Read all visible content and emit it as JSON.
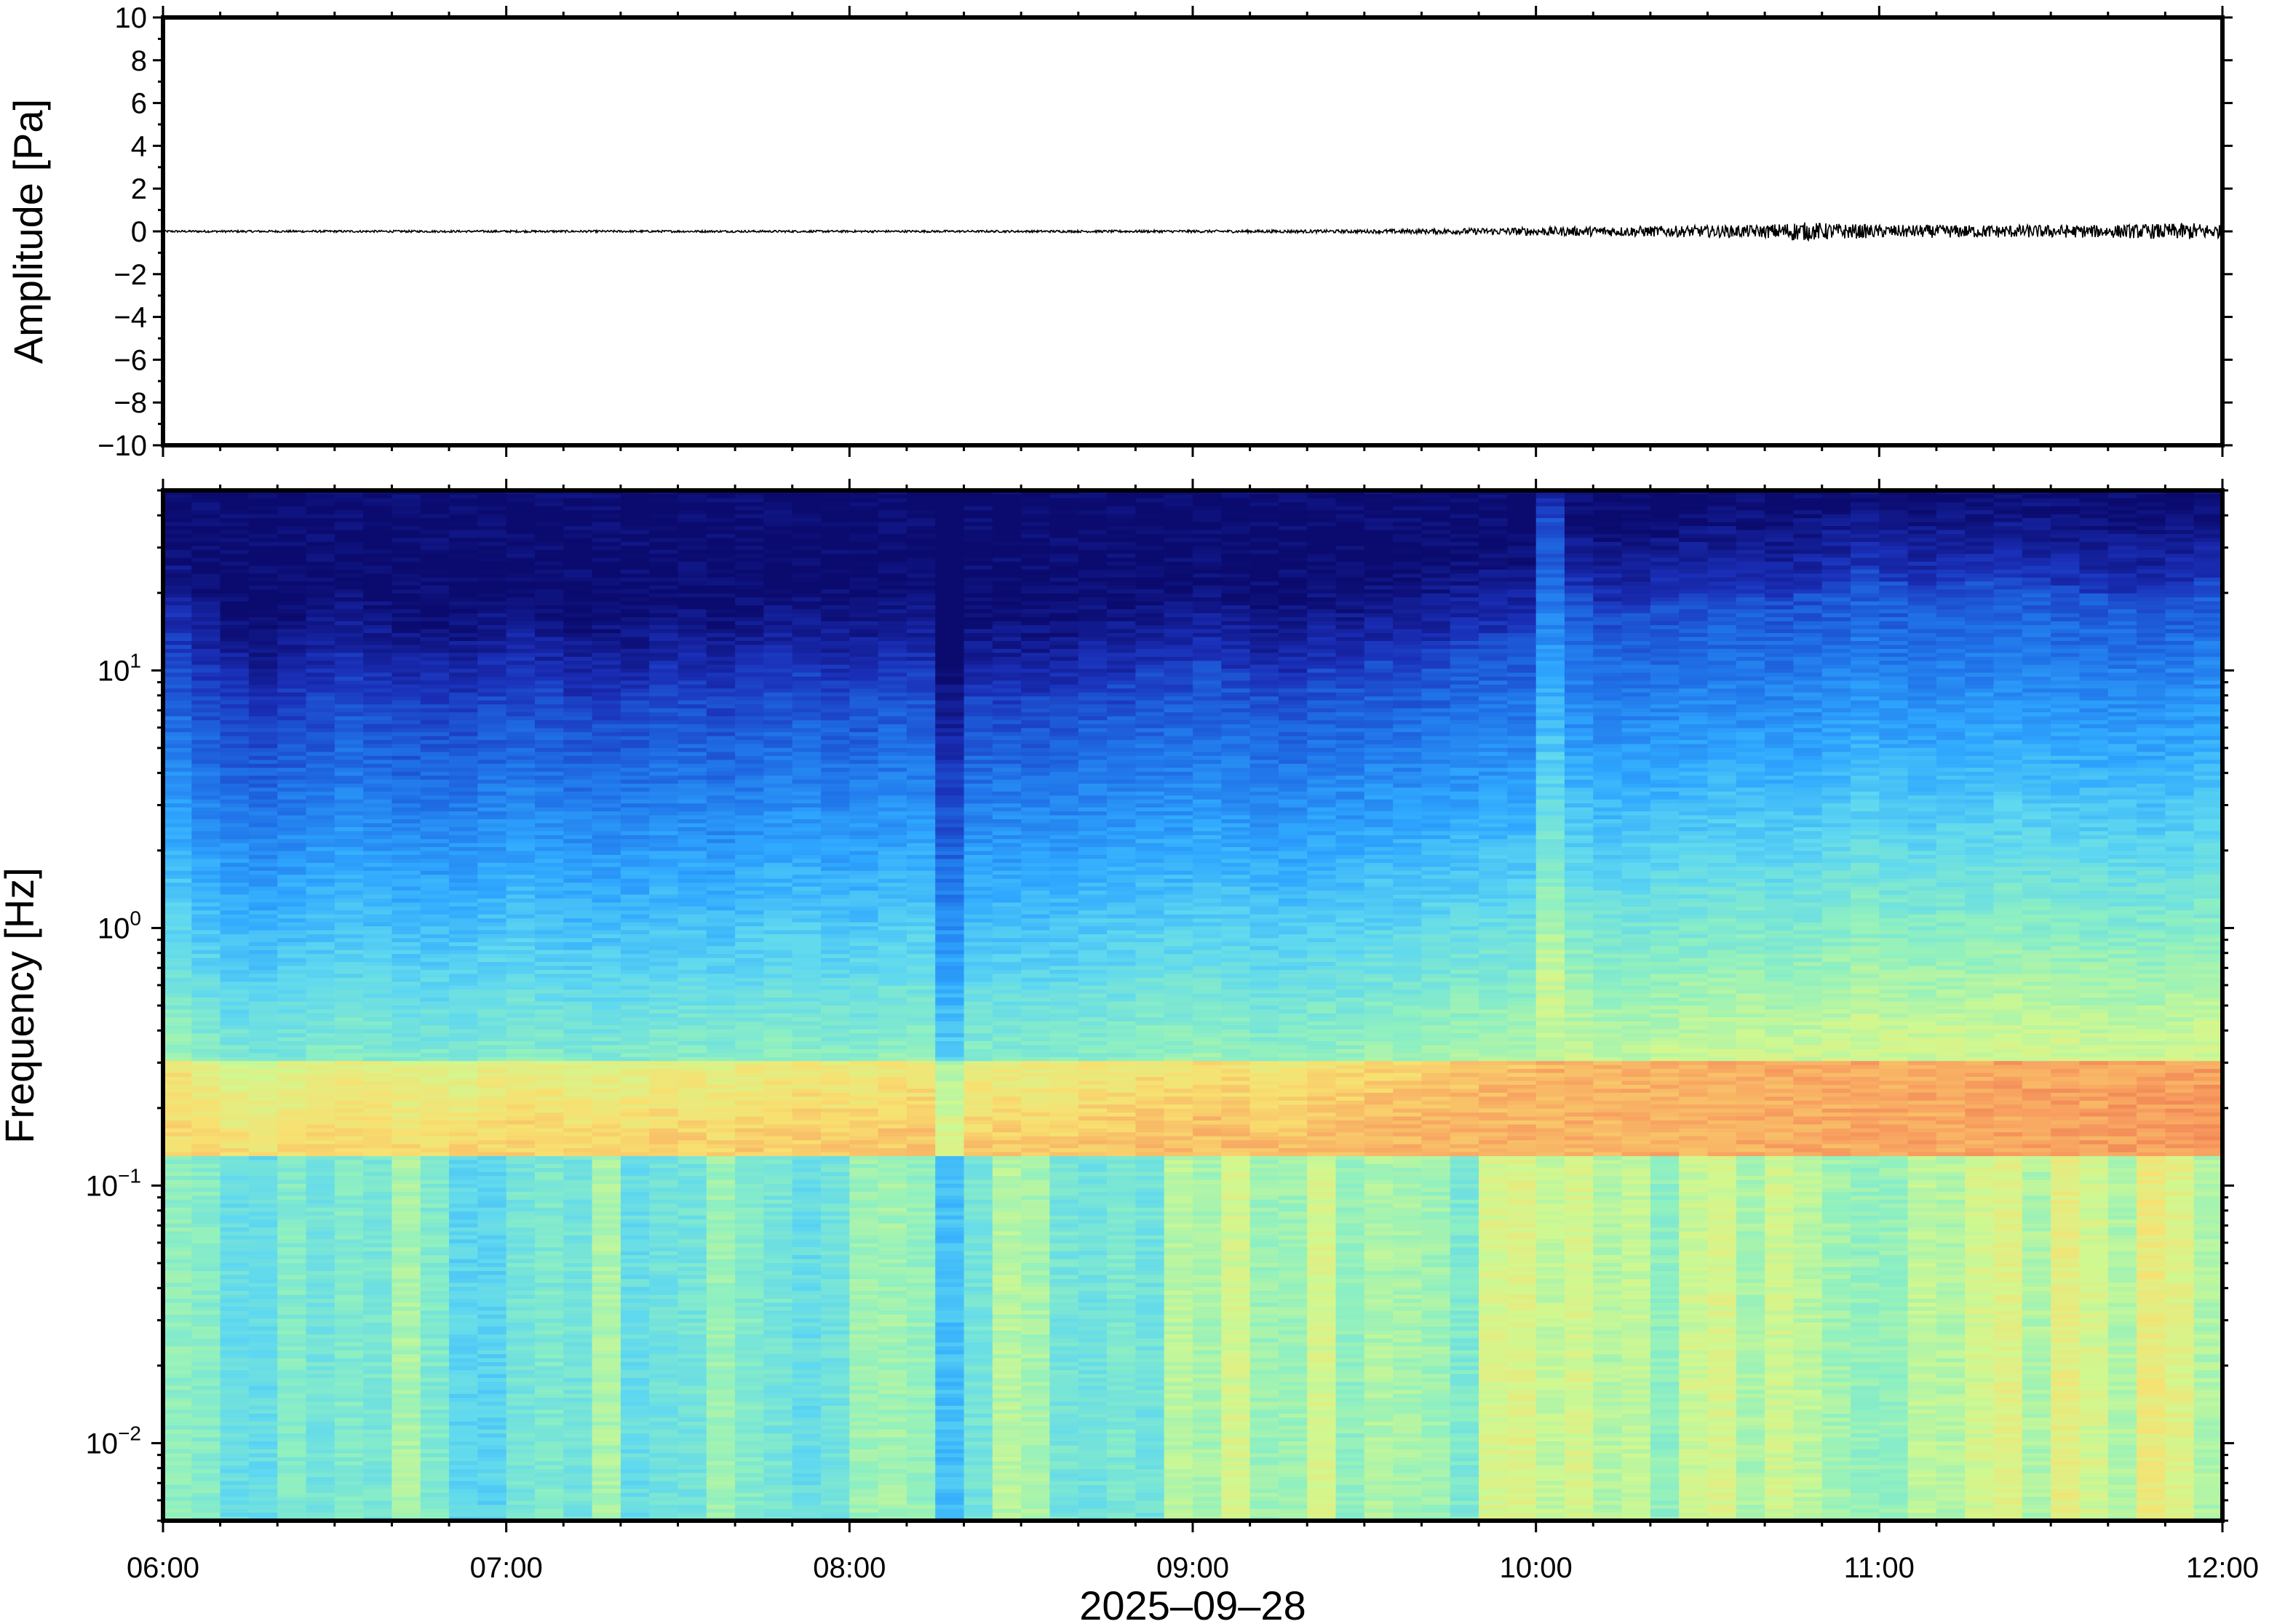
{
  "chart_data": [
    {
      "type": "line",
      "panel": "waveform",
      "ylabel": "Amplitude [Pa]",
      "xlabel": "",
      "ylim": [
        -10,
        10
      ],
      "yticks": [
        10,
        8,
        6,
        4,
        2,
        0,
        -2,
        -4,
        -6,
        -8,
        -10
      ],
      "ytick_labels": [
        "10",
        "8",
        "6",
        "4",
        "2",
        "0",
        "−2",
        "−4",
        "−6",
        "−8",
        "−10"
      ],
      "x_start": "06:00",
      "x_end": "12:00",
      "series": [
        {
          "color": "#000000",
          "x": [
            "06:00",
            "06:30",
            "07:00",
            "07:30",
            "08:00",
            "08:30",
            "09:00",
            "09:30",
            "09:50",
            "10:00",
            "10:20",
            "10:40",
            "10:45",
            "11:00",
            "11:20",
            "11:40",
            "11:55",
            "12:00"
          ],
          "envelope": [
            0.05,
            0.05,
            0.05,
            0.05,
            0.05,
            0.05,
            0.06,
            0.08,
            0.15,
            0.2,
            0.25,
            0.3,
            0.45,
            0.3,
            0.3,
            0.3,
            0.4,
            0.3
          ]
        }
      ]
    },
    {
      "type": "heatmap",
      "panel": "spectrogram",
      "ylabel": "Frequency [Hz]",
      "xlabel": "2025–09–28",
      "yscale": "log",
      "ylim": [
        0.005,
        50
      ],
      "yticks": [
        0.01,
        0.1,
        1,
        10
      ],
      "ytick_labels": [
        {
          "base": "10",
          "exp": "−2"
        },
        {
          "base": "10",
          "exp": "−1"
        },
        {
          "base": "10",
          "exp": "0"
        },
        {
          "base": "10",
          "exp": "1"
        }
      ],
      "xticks": [
        "06:00",
        "07:00",
        "08:00",
        "09:00",
        "10:00",
        "11:00",
        "12:00"
      ],
      "colormap": [
        "#0b0b6f",
        "#1a2fb8",
        "#1f6fe6",
        "#2fa8ff",
        "#5fd8f0",
        "#8ff0c0",
        "#d0f890",
        "#f8e070",
        "#f8a060",
        "#e05040"
      ],
      "time_columns": 72,
      "upper_cutoff_hz_by_column": [
        14,
        10,
        8,
        7,
        8,
        9,
        10,
        9,
        8,
        8,
        8,
        9,
        10,
        9,
        8,
        8,
        8,
        9,
        9,
        8,
        9,
        10,
        10,
        9,
        9,
        10,
        10,
        9,
        8,
        8,
        8,
        8,
        9,
        9,
        10,
        10,
        11,
        10,
        9,
        9,
        10,
        10,
        11,
        11,
        12,
        13,
        14,
        14,
        40,
        20,
        17,
        17,
        18,
        19,
        20,
        20,
        19,
        20,
        22,
        25,
        22,
        21,
        22,
        22,
        23,
        22,
        21,
        20,
        20,
        19,
        20,
        22
      ],
      "microseism_band_hz": [
        0.13,
        0.3
      ],
      "quiet_dip_column": 27
    }
  ]
}
